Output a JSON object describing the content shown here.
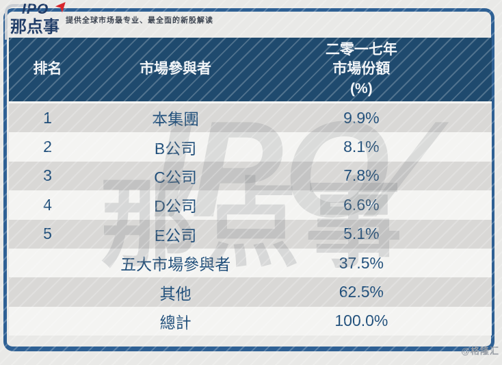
{
  "brand": {
    "logo_top": "IPO",
    "logo_bottom": "那点事",
    "tagline": "提供全球市场最专业、最全面的新股解读"
  },
  "icons": {
    "logo_arrow": "➤",
    "watermark_slash": "∕"
  },
  "table": {
    "header": {
      "col_rank": "排名",
      "col_participant": "市場參與者",
      "col_share_line1": "二零一七年",
      "col_share_line2": "市場份額",
      "col_share_line3": "(%)"
    },
    "rows": [
      {
        "rank": "1",
        "participant": "本集團",
        "share": "9.9%"
      },
      {
        "rank": "2",
        "participant": "B公司",
        "share": "8.1%"
      },
      {
        "rank": "3",
        "participant": "C公司",
        "share": "7.8%"
      },
      {
        "rank": "4",
        "participant": "D公司",
        "share": "6.6%"
      },
      {
        "rank": "5",
        "participant": "E公司",
        "share": "5.1%"
      },
      {
        "rank": "",
        "participant": "五大市場參與者",
        "share": "37.5%"
      },
      {
        "rank": "",
        "participant": "其他",
        "share": "62.5%"
      },
      {
        "rank": "",
        "participant": "總計",
        "share": "100.0%"
      }
    ]
  },
  "watermarks": {
    "center_top": "IPO",
    "center_bottom": "那点事",
    "corner": "@格隆汇"
  },
  "colors": {
    "header_bg": "#1f4a6e",
    "header_text": "#f2f5f8",
    "body_text": "#1f4e7a",
    "row_gray": "#d9d8d6",
    "row_white": "#f4f4f2",
    "frame_border": "#2e6094",
    "logo_navy": "#1d3a66",
    "logo_arrow_red": "#d8262c",
    "page_bg": "#e9e9e7"
  },
  "chart_data": {
    "type": "table",
    "title": "二零一七年市場份額(%)",
    "columns": [
      "排名",
      "市場參與者",
      "二零一七年市場份額(%)"
    ],
    "rows": [
      [
        "1",
        "本集團",
        "9.9%"
      ],
      [
        "2",
        "B公司",
        "8.1%"
      ],
      [
        "3",
        "C公司",
        "7.8%"
      ],
      [
        "4",
        "D公司",
        "6.6%"
      ],
      [
        "5",
        "E公司",
        "5.1%"
      ],
      [
        "",
        "五大市場參與者",
        "37.5%"
      ],
      [
        "",
        "其他",
        "62.5%"
      ],
      [
        "",
        "總計",
        "100.0%"
      ]
    ],
    "values_pct": {
      "本集團": 9.9,
      "B公司": 8.1,
      "C公司": 7.8,
      "D公司": 6.6,
      "E公司": 5.1,
      "五大市場參與者": 37.5,
      "其他": 62.5,
      "總計": 100.0
    }
  }
}
